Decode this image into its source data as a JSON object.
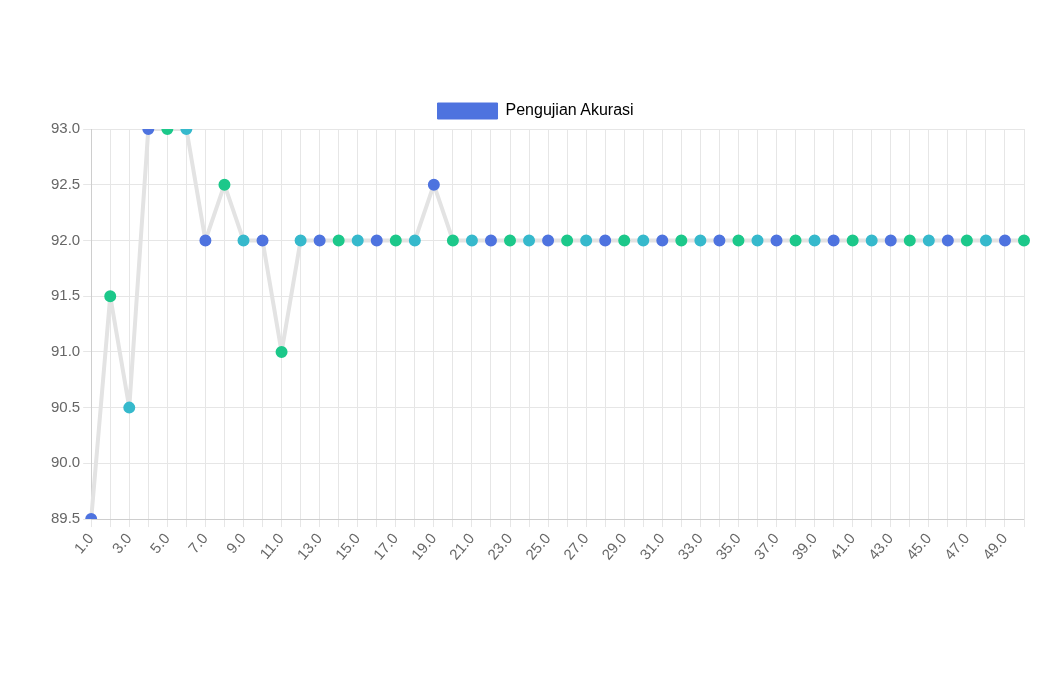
{
  "chart_data": {
    "type": "line",
    "categories": [
      "1.0",
      null,
      "3.0",
      null,
      "5.0",
      null,
      "7.0",
      null,
      "9.0",
      null,
      "11.0",
      null,
      "13.0",
      null,
      "15.0",
      null,
      "17.0",
      null,
      "19.0",
      null,
      "21.0",
      null,
      "23.0",
      null,
      "25.0",
      null,
      "27.0",
      null,
      "29.0",
      null,
      "31.0",
      null,
      "33.0",
      null,
      "35.0",
      null,
      "37.0",
      null,
      "39.0",
      null,
      "41.0",
      null,
      "43.0",
      null,
      "45.0",
      null,
      "47.0",
      null,
      "49.0",
      null
    ],
    "series": [
      {
        "name": "Pengujian Akurasi",
        "color": "#e3e3e3",
        "colors": [
          "#4e73df",
          "#1cc88a",
          "#36b9cc",
          "#4e73df",
          "#1cc88a",
          "#36b9cc",
          "#4e73df",
          "#1cc88a",
          "#36b9cc",
          "#4e73df",
          "#1cc88a",
          "#36b9cc",
          "#4e73df",
          "#1cc88a",
          "#36b9cc",
          "#4e73df",
          "#1cc88a",
          "#36b9cc",
          "#4e73df",
          "#1cc88a",
          "#36b9cc",
          "#4e73df",
          "#1cc88a",
          "#36b9cc",
          "#4e73df",
          "#1cc88a",
          "#36b9cc",
          "#4e73df",
          "#1cc88a",
          "#36b9cc",
          "#4e73df",
          "#1cc88a",
          "#36b9cc",
          "#4e73df",
          "#1cc88a",
          "#36b9cc",
          "#4e73df",
          "#1cc88a",
          "#36b9cc",
          "#4e73df",
          "#1cc88a",
          "#36b9cc",
          "#4e73df",
          "#1cc88a",
          "#36b9cc",
          "#4e73df",
          "#1cc88a",
          "#36b9cc",
          "#4e73df",
          "#1cc88a"
        ],
        "values": [
          89.5,
          91.5,
          90.5,
          93,
          93,
          93,
          92,
          92.5,
          92,
          92,
          91,
          92,
          92,
          92,
          92,
          92,
          92,
          92,
          92.5,
          92,
          92,
          92,
          92,
          92,
          92,
          92,
          92,
          92,
          92,
          92,
          92,
          92,
          92,
          92,
          92,
          92,
          92,
          92,
          92,
          92,
          92,
          92,
          92,
          92,
          92,
          92,
          92,
          92,
          92,
          92
        ]
      }
    ],
    "ylim": [
      89.5,
      93
    ],
    "yticks": [
      {
        "value": 89.5,
        "label": "89.5"
      },
      {
        "value": 90,
        "label": "90.0"
      },
      {
        "value": 90.5,
        "label": "90.5"
      },
      {
        "value": 91,
        "label": "91.0"
      },
      {
        "value": 91.5,
        "label": "91.5"
      },
      {
        "value": 92,
        "label": "92.0"
      },
      {
        "value": 92.5,
        "label": "92.5"
      },
      {
        "value": 93,
        "label": "93.0"
      }
    ],
    "grid": true,
    "legend": "top",
    "marker": "circle",
    "line_style": "solid"
  }
}
